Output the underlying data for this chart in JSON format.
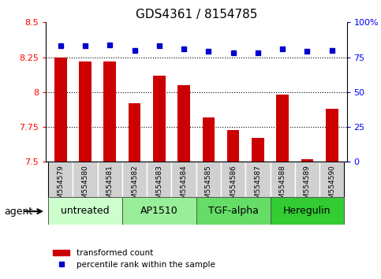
{
  "title": "GDS4361 / 8154785",
  "samples": [
    "GSM554579",
    "GSM554580",
    "GSM554581",
    "GSM554582",
    "GSM554583",
    "GSM554584",
    "GSM554585",
    "GSM554586",
    "GSM554587",
    "GSM554588",
    "GSM554589",
    "GSM554590"
  ],
  "red_values": [
    8.25,
    8.22,
    8.22,
    7.92,
    8.12,
    8.05,
    7.82,
    7.73,
    7.67,
    7.98,
    7.52,
    7.88
  ],
  "blue_values": [
    83,
    83,
    84,
    80,
    83,
    81,
    79,
    78,
    78,
    81,
    79,
    80
  ],
  "ymin": 7.5,
  "ymax": 8.5,
  "y2min": 0,
  "y2max": 100,
  "yticks": [
    7.5,
    7.75,
    8.0,
    8.25,
    8.5
  ],
  "ytick_labels": [
    "7.5",
    "7.75",
    "8",
    "8.25",
    "8.5"
  ],
  "y2ticks": [
    0,
    25,
    50,
    75,
    100
  ],
  "y2ticklabels": [
    "0",
    "25",
    "50",
    "75",
    "100%"
  ],
  "grid_lines": [
    7.75,
    8.0,
    8.25
  ],
  "groups": [
    {
      "label": "untreated",
      "start": 0,
      "end": 3,
      "color": "#ccffcc"
    },
    {
      "label": "AP1510",
      "start": 3,
      "end": 6,
      "color": "#99ee99"
    },
    {
      "label": "TGF-alpha",
      "start": 6,
      "end": 9,
      "color": "#66dd66"
    },
    {
      "label": "Heregulin",
      "start": 9,
      "end": 12,
      "color": "#33cc33"
    }
  ],
  "bar_color": "#cc0000",
  "dot_color": "#0000cc",
  "bar_width": 0.5,
  "sample_box_color": "#d0d0d0",
  "legend_items": [
    {
      "color": "#cc0000",
      "label": "transformed count"
    },
    {
      "color": "#0000cc",
      "label": "percentile rank within the sample"
    }
  ],
  "agent_label": "agent",
  "title_fontsize": 11,
  "tick_fontsize": 8,
  "group_fontsize": 9,
  "legend_fontsize": 7.5,
  "sample_fontsize": 6.5
}
